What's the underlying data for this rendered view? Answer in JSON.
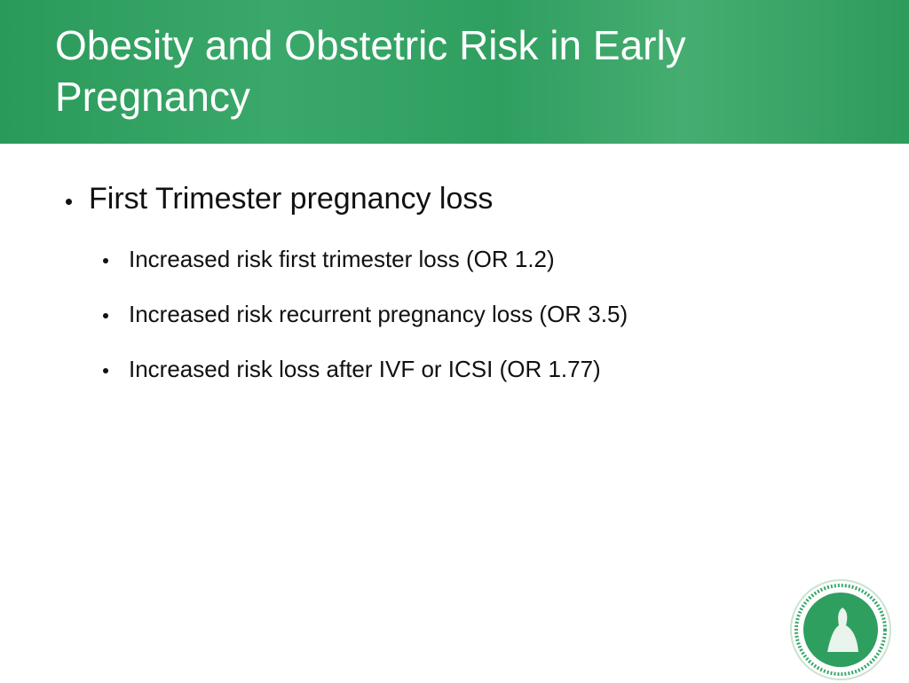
{
  "header": {
    "title": "Obesity and Obstetric Risk in Early Pregnancy"
  },
  "body": {
    "bullets": [
      {
        "text": "First Trimester pregnancy loss",
        "items": [
          "Increased risk first trimester loss (OR 1.2)",
          "Increased risk recurrent pregnancy loss (OR 3.5)",
          "Increased risk loss after IVF or ICSI (OR 1.77)"
        ]
      }
    ]
  }
}
